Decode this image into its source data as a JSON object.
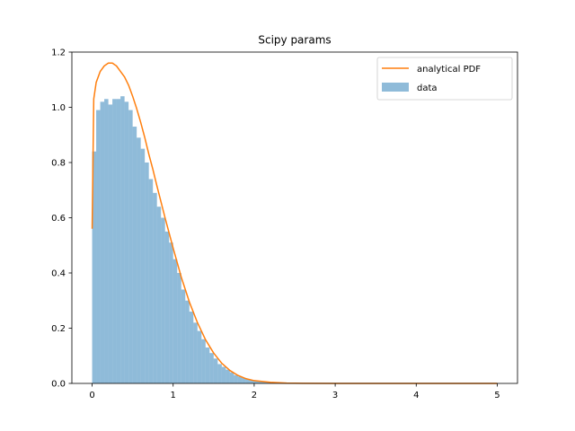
{
  "chart_data": {
    "type": "histogram",
    "title": "Scipy params",
    "xlabel": "",
    "ylabel": "",
    "xlim": [
      -0.25,
      5.25
    ],
    "ylim": [
      0.0,
      1.2
    ],
    "xticks": [
      0,
      1,
      2,
      3,
      4,
      5
    ],
    "xtick_labels": [
      "0",
      "1",
      "2",
      "3",
      "4",
      "5"
    ],
    "yticks": [
      0.0,
      0.2,
      0.4,
      0.6,
      0.8,
      1.0,
      1.2
    ],
    "ytick_labels": [
      "0.0",
      "0.2",
      "0.4",
      "0.6",
      "0.8",
      "1.0",
      "1.2"
    ],
    "grid": false,
    "legend_position": "top-right",
    "series": [
      {
        "name": "analytical PDF",
        "kind": "line",
        "color": "#ff7f0e",
        "x": [
          0,
          0.02,
          0.05,
          0.1,
          0.15,
          0.2,
          0.25,
          0.3,
          0.35,
          0.4,
          0.45,
          0.5,
          0.55,
          0.6,
          0.65,
          0.7,
          0.75,
          0.8,
          0.9,
          1.0,
          1.1,
          1.2,
          1.3,
          1.4,
          1.5,
          1.6,
          1.7,
          1.8,
          1.9,
          2.0,
          2.2,
          2.4,
          2.6,
          3.0,
          3.5,
          4.0,
          5.0
        ],
        "y": [
          0.56,
          1.03,
          1.09,
          1.13,
          1.15,
          1.16,
          1.16,
          1.15,
          1.13,
          1.11,
          1.08,
          1.04,
          0.995,
          0.945,
          0.89,
          0.83,
          0.775,
          0.715,
          0.6,
          0.49,
          0.385,
          0.295,
          0.22,
          0.158,
          0.11,
          0.073,
          0.047,
          0.029,
          0.017,
          0.01,
          0.004,
          0.0013,
          0.0004,
          3e-05,
          0,
          0,
          0
        ]
      },
      {
        "name": "data",
        "kind": "bar",
        "color": "#1f77b4",
        "opacity": 0.5,
        "bin_width": 0.05,
        "bin_starts": [
          0.0,
          0.05,
          0.1,
          0.15,
          0.2,
          0.25,
          0.3,
          0.35,
          0.4,
          0.45,
          0.5,
          0.55,
          0.6,
          0.65,
          0.7,
          0.75,
          0.8,
          0.85,
          0.9,
          0.95,
          1.0,
          1.05,
          1.1,
          1.15,
          1.2,
          1.25,
          1.3,
          1.35,
          1.4,
          1.45,
          1.5,
          1.55,
          1.6,
          1.65,
          1.7,
          1.75,
          1.8,
          1.85,
          1.9,
          1.95,
          2.0,
          2.05,
          2.1,
          2.15,
          2.2,
          2.25,
          2.3,
          2.35,
          2.4
        ],
        "values": [
          0.84,
          0.99,
          1.02,
          1.03,
          1.01,
          1.03,
          1.03,
          1.04,
          1.02,
          0.99,
          0.93,
          0.89,
          0.85,
          0.8,
          0.74,
          0.69,
          0.64,
          0.6,
          0.55,
          0.51,
          0.45,
          0.4,
          0.34,
          0.3,
          0.26,
          0.22,
          0.19,
          0.16,
          0.13,
          0.11,
          0.09,
          0.07,
          0.06,
          0.05,
          0.04,
          0.03,
          0.025,
          0.02,
          0.015,
          0.012,
          0.01,
          0.008,
          0.006,
          0.004,
          0.003,
          0.002,
          0.0015,
          0.001,
          0.0005
        ]
      }
    ]
  }
}
